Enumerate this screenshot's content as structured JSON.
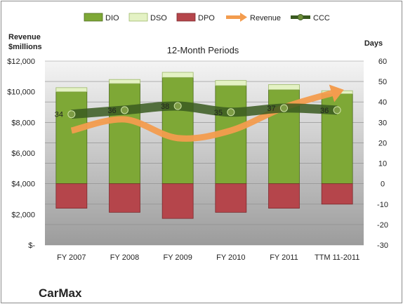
{
  "chart_data": {
    "type": "bar",
    "title": "12-Month Periods",
    "company": "CarMax",
    "ylabel_left": "Revenue\n$millions",
    "ylabel_right": "Days",
    "categories": [
      "FY 2007",
      "FY 2008",
      "FY 2009",
      "FY 2010",
      "FY 2011",
      "TTM 11-2011"
    ],
    "left_axis": {
      "min": 0,
      "max": 12000,
      "step": 2000,
      "tick_labels": [
        "$-",
        "$2,000",
        "$4,000",
        "$6,000",
        "$8,000",
        "$10,000",
        "$12,000"
      ]
    },
    "right_axis": {
      "min": -30,
      "max": 60,
      "step": 10,
      "tick_labels": [
        "-30",
        "-20",
        "-10",
        "0",
        "10",
        "20",
        "30",
        "40",
        "50",
        "60"
      ]
    },
    "legend": [
      "DIO",
      "DSO",
      "DPO",
      "Revenue",
      "CCC"
    ],
    "legend_position": "top",
    "grid": true,
    "series": [
      {
        "name": "DIO",
        "kind": "stacked-bar",
        "axis": "right",
        "color": "#7ea836",
        "values": [
          45,
          49,
          52,
          48,
          46,
          44
        ]
      },
      {
        "name": "DSO",
        "kind": "stacked-bar",
        "axis": "right",
        "color": "#e4f2c4",
        "values": [
          2,
          2,
          2.5,
          2.5,
          2.5,
          1.5
        ]
      },
      {
        "name": "DPO",
        "kind": "bar-negative",
        "axis": "right",
        "color": "#b5454b",
        "values": [
          -12,
          -14,
          -17,
          -14,
          -12,
          -10
        ]
      },
      {
        "name": "Revenue",
        "kind": "line-arrow",
        "axis": "left",
        "color": "#f39c4e",
        "values": [
          7466,
          8200,
          6974,
          7470,
          8976,
          10000
        ]
      },
      {
        "name": "CCC",
        "kind": "line",
        "axis": "right",
        "color": "#3a5a20",
        "values": [
          34,
          36,
          38,
          35,
          37,
          36
        ],
        "labels": [
          "34",
          "36",
          "38",
          "35",
          "37",
          "36"
        ]
      }
    ]
  }
}
